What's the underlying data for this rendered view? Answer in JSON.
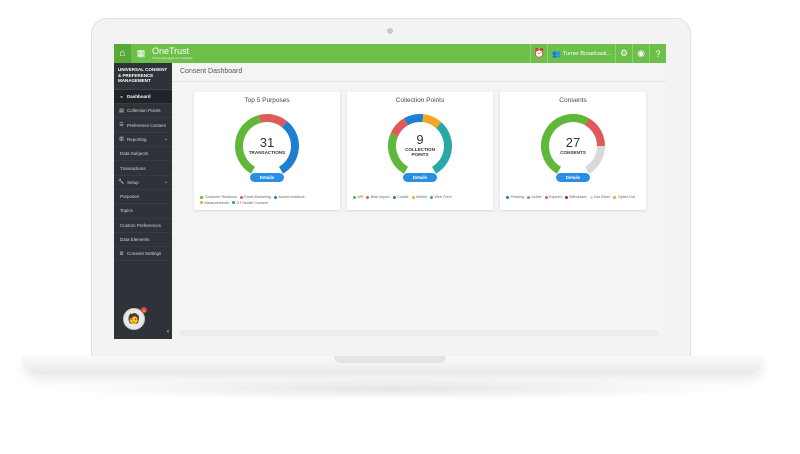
{
  "app": {
    "logo": "OneTrust",
    "tagline": "Privacy Management Software",
    "user_name": "Turner Broadcasti...",
    "colors": {
      "brand_green": "#6cc04a",
      "sidebar": "#2d3339",
      "button_blue": "#2a8ee6"
    }
  },
  "sidebar": {
    "title": "UNIVERSAL CONSENT & PREFERENCE MANAGEMENT",
    "items": [
      {
        "label": "Dashboard",
        "icon": "dashboard-icon",
        "active": true
      },
      {
        "label": "Collection Points",
        "icon": "collection-icon"
      },
      {
        "label": "Preference Centers",
        "icon": "preferences-icon"
      },
      {
        "label": "Reporting",
        "icon": "reporting-icon",
        "expandable": true
      },
      {
        "label": "Data Subjects",
        "sub": true
      },
      {
        "label": "Transactions",
        "sub": true
      },
      {
        "label": "Setup",
        "icon": "wrench-icon",
        "expandable": true
      },
      {
        "label": "Purposes",
        "sub": true
      },
      {
        "label": "Topics",
        "sub": true
      },
      {
        "label": "Custom Preferences",
        "sub": true
      },
      {
        "label": "Data Elements",
        "sub": true
      },
      {
        "label": "Consent Settings",
        "icon": "settings-icon"
      }
    ],
    "notification_count": "1"
  },
  "page": {
    "title": "Consent Dashboard"
  },
  "cards": [
    {
      "title": "Top 5 Purposes",
      "count": "31",
      "label": "TRANSACTIONS",
      "button": "Details",
      "segments": [
        {
          "name": "Customer Relations",
          "color": "#5fb83a",
          "fraction": 0.45
        },
        {
          "name": "Email Marketing",
          "color": "#e05a5a",
          "fraction": 0.18
        },
        {
          "name": "Alumni relations",
          "color": "#1e7fd0",
          "fraction": 0.37
        }
      ],
      "legend": [
        {
          "name": "Customer Relations",
          "color": "#5fb83a"
        },
        {
          "name": "Email Marketing",
          "color": "#e05a5a"
        },
        {
          "name": "Alumni relations",
          "color": "#1e7fd0"
        },
        {
          "name": "Measurements",
          "color": "#f5a623"
        },
        {
          "name": "OT Mobile Consent",
          "color": "#2a9d8f"
        }
      ]
    },
    {
      "title": "Collection Points",
      "count": "9",
      "label": "COLLECTION POINTS",
      "button": "Details",
      "segments": [
        {
          "name": "API",
          "color": "#5fb83a",
          "fraction": 0.28
        },
        {
          "name": "Bulk Import",
          "color": "#e05a5a",
          "fraction": 0.12
        },
        {
          "name": "Cookie",
          "color": "#1e7fd0",
          "fraction": 0.12
        },
        {
          "name": "Mobile",
          "color": "#f5a623",
          "fraction": 0.12
        },
        {
          "name": "Web Form",
          "color": "#2aa8a8",
          "fraction": 0.36
        }
      ],
      "legend": [
        {
          "name": "API",
          "color": "#5fb83a"
        },
        {
          "name": "Bulk Import",
          "color": "#e05a5a"
        },
        {
          "name": "Cookie",
          "color": "#1e7fd0"
        },
        {
          "name": "Mobile",
          "color": "#f5a623"
        },
        {
          "name": "Web Form",
          "color": "#2aa8a8"
        }
      ]
    },
    {
      "title": "Consents",
      "count": "27",
      "label": "CONSENTS",
      "button": "Details",
      "segments": [
        {
          "name": "Active",
          "color": "#5fb83a",
          "fraction": 0.6
        },
        {
          "name": "Expired",
          "color": "#e05a5a",
          "fraction": 0.2
        },
        {
          "name": "Not Given",
          "color": "#d9d9d9",
          "fraction": 0.2
        }
      ],
      "legend": [
        {
          "name": "Pending",
          "color": "#1e7fd0"
        },
        {
          "name": "Active",
          "color": "#5fb83a"
        },
        {
          "name": "Expired",
          "color": "#e05a5a"
        },
        {
          "name": "Withdrawn",
          "color": "#c2185b"
        },
        {
          "name": "Not Given",
          "color": "#d9d9d9"
        },
        {
          "name": "Opted Out",
          "color": "#f5a623"
        }
      ]
    }
  ]
}
